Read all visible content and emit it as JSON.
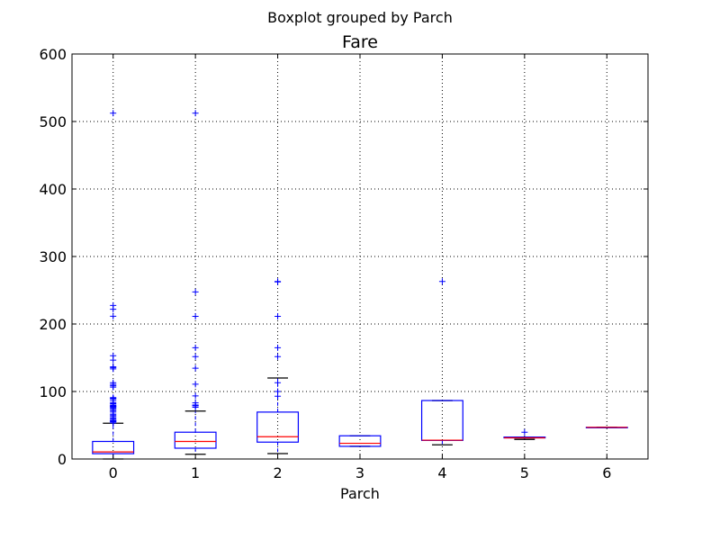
{
  "chart_data": {
    "type": "boxplot",
    "suptitle": "Boxplot grouped by Parch",
    "title": "Fare",
    "xlabel": "Parch",
    "ylabel": "",
    "ylim": [
      0,
      600
    ],
    "yticks": [
      0,
      100,
      200,
      300,
      400,
      500,
      600
    ],
    "grid": true,
    "categories": [
      "0",
      "1",
      "2",
      "3",
      "4",
      "5",
      "6"
    ],
    "boxes": [
      {
        "category": "0",
        "whisker_low": 0,
        "q1": 7.9,
        "median": 10.5,
        "q3": 26,
        "whisker_high": 53,
        "fliers": [
          53.5,
          55,
          55.5,
          56.5,
          57,
          57.5,
          59.5,
          61,
          63,
          65,
          66.5,
          69.5,
          71.5,
          73.5,
          75,
          76.5,
          77.5,
          78,
          79,
          80,
          82,
          83.5,
          86.5,
          89,
          90,
          91,
          106.5,
          108.5,
          110.5,
          113,
          133.5,
          135.5,
          136.5,
          146.5,
          153,
          211.5,
          221.8,
          227.5,
          512.3
        ]
      },
      {
        "category": "1",
        "whisker_low": 7,
        "q1": 16,
        "median": 26,
        "q3": 39.7,
        "whisker_high": 71,
        "fliers": [
          76.7,
          78.9,
          79.2,
          80,
          83.2,
          93.5,
          110.9,
          134.5,
          151.6,
          164.9,
          211.3,
          247.5,
          512.3
        ]
      },
      {
        "category": "2",
        "whisker_low": 8,
        "q1": 25,
        "median": 33,
        "q3": 69.5,
        "whisker_high": 120,
        "fliers": [
          93,
          100,
          113,
          151.6,
          164.9,
          211.3,
          262.4,
          263
        ]
      },
      {
        "category": "3",
        "whisker_low": 18.75,
        "q1": 18.75,
        "median": 23.25,
        "q3": 34.375,
        "whisker_high": 34.375,
        "fliers": []
      },
      {
        "category": "4",
        "whisker_low": 21,
        "q1": 27.5,
        "median": 27.9,
        "q3": 86.6,
        "whisker_high": 86.6,
        "fliers": [
          263
        ]
      },
      {
        "category": "5",
        "whisker_low": 29.1,
        "q1": 31.3,
        "median": 31.3,
        "q3": 32.5,
        "whisker_high": 32.5,
        "fliers": [
          39.7
        ]
      },
      {
        "category": "6",
        "whisker_low": 46.9,
        "q1": 46.9,
        "median": 46.9,
        "q3": 46.9,
        "whisker_high": 46.9,
        "fliers": []
      }
    ],
    "colors": {
      "box": "#0000ff",
      "median": "#ff0000",
      "whisker": "#000000",
      "caps": "#000000",
      "flier": "#0000ff",
      "grid": "#000000"
    }
  }
}
